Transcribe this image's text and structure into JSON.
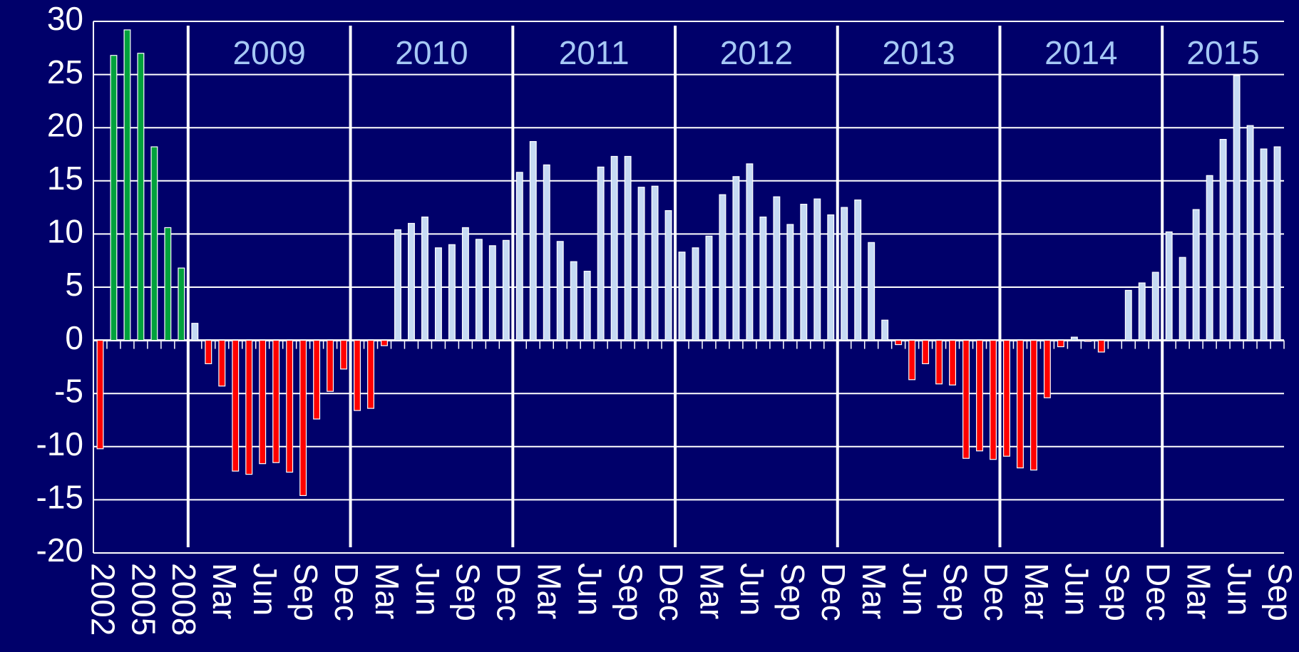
{
  "chart_data": {
    "type": "bar",
    "annual": {
      "categories": [
        "2002",
        null,
        null,
        "2005",
        null,
        null,
        "2008"
      ],
      "values": [
        -10.2,
        26.8,
        29.2,
        27,
        18.2,
        10.6,
        6.8
      ]
    },
    "monthly": {
      "categories": [
        null,
        null,
        "Mar",
        null,
        null,
        "Jun",
        null,
        null,
        "Sep",
        null,
        null,
        "Dec",
        null,
        null,
        "Mar",
        null,
        null,
        "Jun",
        null,
        null,
        "Sep",
        null,
        null,
        "Dec",
        null,
        null,
        "Mar",
        null,
        null,
        "Jun",
        null,
        null,
        "Sep",
        null,
        null,
        "Dec",
        null,
        null,
        "Mar",
        null,
        null,
        "Jun",
        null,
        null,
        "Sep",
        null,
        null,
        "Dec",
        null,
        null,
        "Mar",
        null,
        null,
        "Jun",
        null,
        null,
        "Sep",
        null,
        null,
        "Dec",
        null,
        null,
        "Mar",
        null,
        null,
        "Jun",
        null,
        null,
        "Sep",
        null,
        null,
        "Dec",
        null,
        null,
        "Mar",
        null,
        null,
        "Jun",
        null,
        null,
        "Sep"
      ],
      "values": [
        1.6,
        -2.2,
        -4.3,
        -12.3,
        -12.6,
        -11.6,
        -11.5,
        -12.4,
        -14.6,
        -7.4,
        -4.8,
        -2.7,
        -6.6,
        -6.4,
        -0.5,
        10.4,
        11,
        11.6,
        8.7,
        9,
        10.6,
        9.5,
        8.9,
        9.4,
        15.8,
        18.7,
        16.5,
        9.3,
        7.4,
        6.5,
        16.3,
        17.3,
        17.3,
        14.4,
        14.5,
        12.2,
        8.3,
        8.7,
        9.8,
        13.7,
        15.4,
        16.6,
        11.6,
        13.5,
        10.9,
        12.8,
        13.3,
        11.8,
        12.5,
        13.2,
        9.2,
        1.9,
        -0.4,
        -3.7,
        -2.2,
        -4.1,
        -4.2,
        -11.1,
        -10.4,
        -11.2,
        -10.9,
        -12,
        -12.2,
        -5.4,
        -0.6,
        0.3,
        -0.1,
        -1.1,
        0,
        4.7,
        5.4,
        6.4,
        10.2,
        7.8,
        12.3,
        15.5,
        18.9,
        24.9,
        20.2,
        18,
        18.2
      ]
    },
    "year_labels": [
      "2009",
      "2010",
      "2011",
      "2012",
      "2013",
      "2014",
      "2015"
    ],
    "colors": {
      "annual": "#00a23c",
      "monthly": "#c6daf3",
      "negative": "#ff0000",
      "year_label": "#a6c8f5"
    },
    "ylim": [
      -20,
      30
    ],
    "yticks": [
      -20,
      -15,
      -10,
      -5,
      0,
      5,
      10,
      15,
      20,
      25,
      30
    ],
    "grid": true
  }
}
